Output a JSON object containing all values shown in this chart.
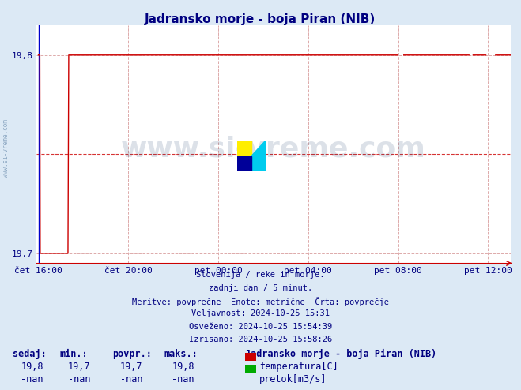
{
  "title": "Jadransko morje - boja Piran (NIB)",
  "bg_color": "#dce9f5",
  "plot_bg_color": "#ffffff",
  "line_color": "#cc0000",
  "blue_line_color": "#0000cc",
  "watermark_color": "#1a3a6b",
  "ymin": 19.7,
  "ymax": 19.8,
  "yticks": [
    19.7,
    19.8
  ],
  "xtick_labels": [
    "čet 16:00",
    "čet 20:00",
    "pet 00:00",
    "pet 04:00",
    "pet 08:00",
    "pet 12:00"
  ],
  "xtick_positions": [
    0,
    240,
    480,
    720,
    960,
    1200
  ],
  "total_minutes": 1440,
  "grid_color": "#ddaaaa",
  "grid_style": "--",
  "watermark_text": "www.si-vreme.com",
  "info_lines": [
    "Slovenija / reke in morje.",
    "zadnji dan / 5 minut.",
    "Meritve: povprečne  Enote: metrične  Črta: povprečje",
    "Veljavnost: 2024-10-25 15:31",
    "Osveženo: 2024-10-25 15:54:39",
    "Izrisano: 2024-10-25 15:58:26"
  ],
  "table_headers": [
    "sedaj:",
    "min.:",
    "povpr.:",
    "maks.:"
  ],
  "table_row1": [
    "19,8",
    "19,7",
    "19,7",
    "19,8"
  ],
  "table_row2": [
    "-nan",
    "-nan",
    "-nan",
    "-nan"
  ],
  "legend_station": "Jadransko morje - boja Piran (NIB)",
  "legend_temp": "temperatura[C]",
  "legend_flow": "pretok[m3/s]",
  "legend_temp_color": "#cc0000",
  "legend_flow_color": "#00aa00",
  "watermark_alpha": 0.15,
  "avg_line_y": 19.75,
  "avg_line_color": "#cc0000",
  "avg_line_style": "--"
}
